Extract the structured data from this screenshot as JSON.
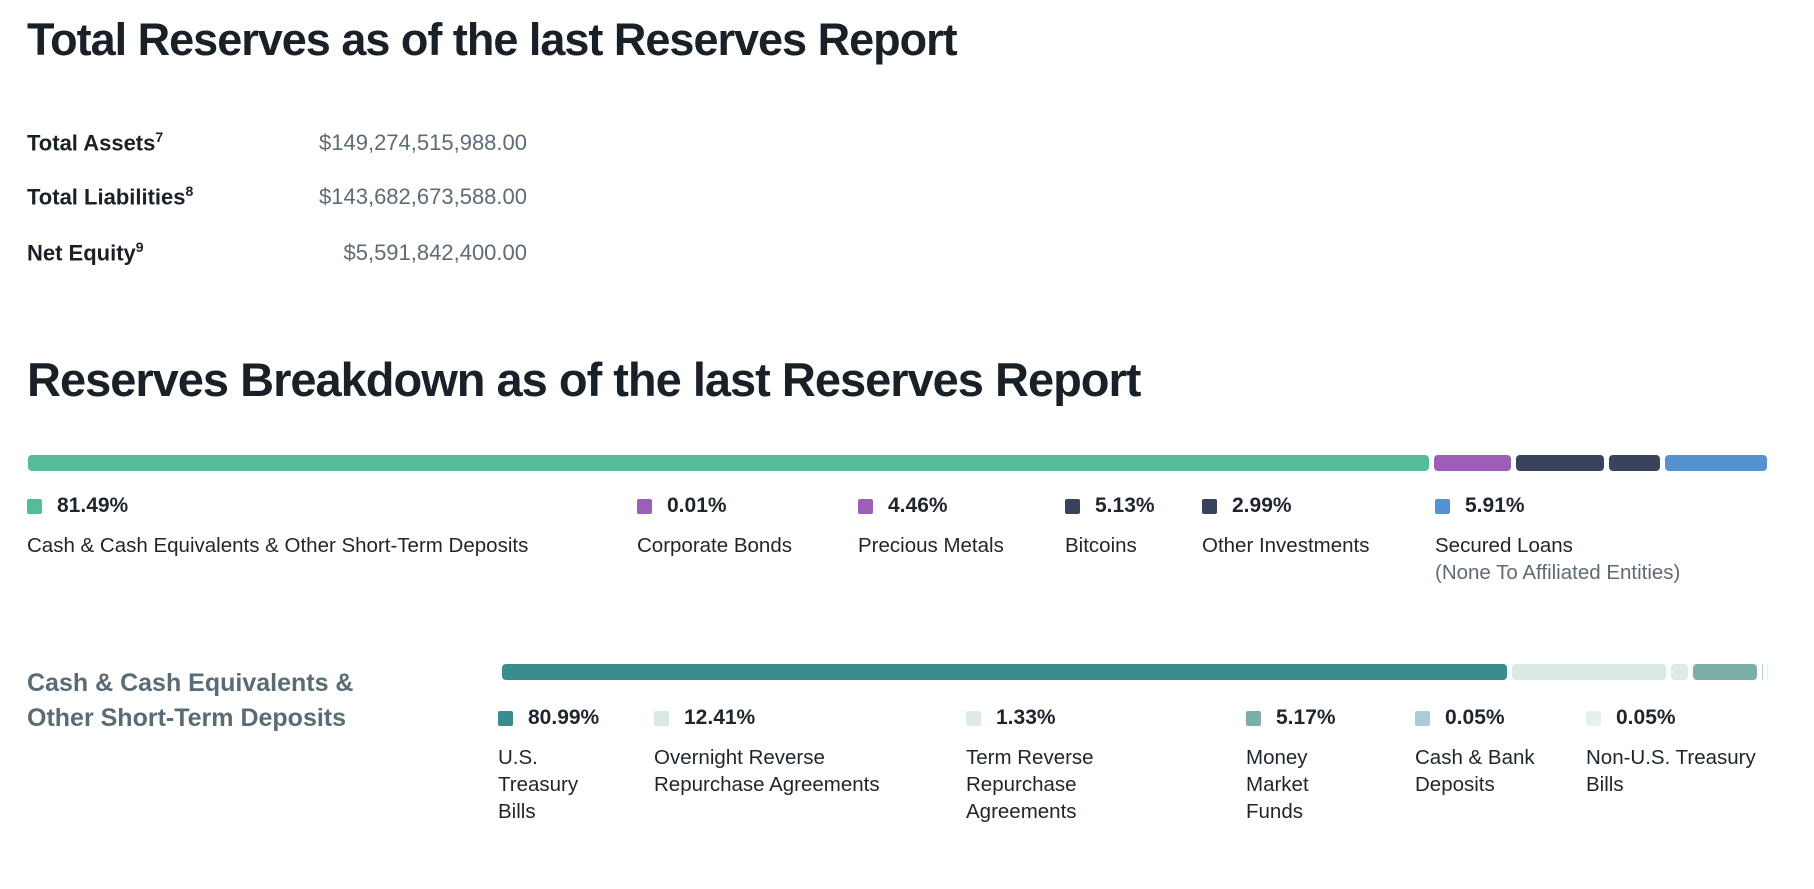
{
  "title1": "Total Reserves as of the last Reserves Report",
  "title2": "Reserves Breakdown as of the last Reserves Report",
  "stats": [
    {
      "label": "Total Assets",
      "sup": "7",
      "value": "$149,274,515,988.00"
    },
    {
      "label": "Total Liabilities",
      "sup": "8",
      "value": "$143,682,673,588.00"
    },
    {
      "label": "Net Equity",
      "sup": "9",
      "value": "$5,591,842,400.00"
    }
  ],
  "subsection_heading": "Cash & Cash Equivalents & Other Short-Term Deposits",
  "colors": {
    "heading": "#1a2027",
    "value_gray": "#5e6a76",
    "subsection_gray": "#5a6b75"
  },
  "chart_data": [
    {
      "type": "bar",
      "variant": "stacked-horizontal-100pct",
      "title": "Reserves Breakdown as of the last Reserves Report",
      "legend_position": "below",
      "segments": [
        {
          "label": "Cash & Cash Equivalents & Other Short-Term Deposits",
          "pct": 81.49,
          "pct_label": "81.49%",
          "color": "#54bc9b"
        },
        {
          "label": "Corporate Bonds",
          "pct": 0.01,
          "pct_label": "0.01%",
          "color": "#9c5fb5"
        },
        {
          "label": "Precious Metals",
          "pct": 4.46,
          "pct_label": "4.46%",
          "color": "#9c5fb5"
        },
        {
          "label": "Bitcoins",
          "pct": 5.13,
          "pct_label": "5.13%",
          "color": "#37445c"
        },
        {
          "label": "Other Investments",
          "pct": 2.99,
          "pct_label": "2.99%",
          "color": "#37445c"
        },
        {
          "label": "Secured Loans",
          "sublabel": "(None To Affiliated Entities)",
          "pct": 5.91,
          "pct_label": "5.91%",
          "color": "#5593d0"
        }
      ]
    },
    {
      "type": "bar",
      "variant": "stacked-horizontal-100pct",
      "title": "Cash & Cash Equivalents & Other Short-Term Deposits",
      "legend_position": "below",
      "segments": [
        {
          "label": "U.S. Treasury Bills",
          "pct": 80.99,
          "pct_label": "80.99%",
          "color": "#3a8d8d"
        },
        {
          "label": "Overnight Reverse Repurchase Agreements",
          "pct": 12.41,
          "pct_label": "12.41%",
          "color": "#d9e8e4"
        },
        {
          "label": "Term Reverse Repurchase Agreements",
          "pct": 1.33,
          "pct_label": "1.33%",
          "color": "#dfebe7"
        },
        {
          "label": "Money Market Funds",
          "pct": 5.17,
          "pct_label": "5.17%",
          "color": "#7cada9"
        },
        {
          "label": "Cash & Bank Deposits",
          "pct": 0.05,
          "pct_label": "0.05%",
          "color": "#a9ced1"
        },
        {
          "label": "Non-U.S. Treasury Bills",
          "pct": 0.05,
          "pct_label": "0.05%",
          "color": "#e7f0ed"
        }
      ]
    }
  ]
}
